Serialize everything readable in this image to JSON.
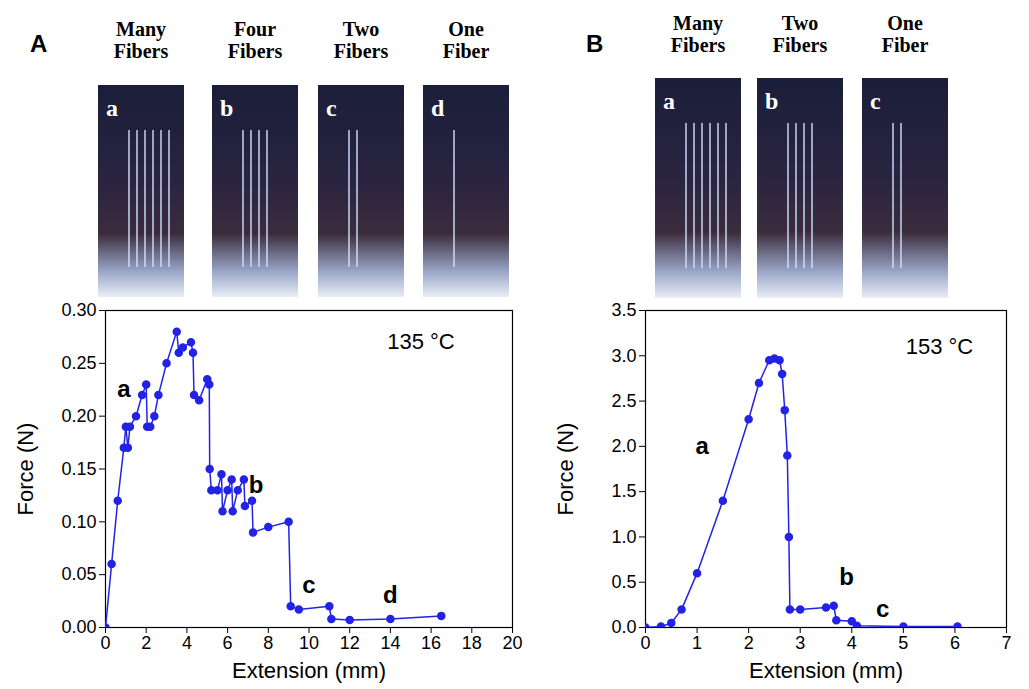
{
  "chart_data": [
    {
      "panel": "A",
      "type": "line",
      "marker": "circle",
      "color": "#2323e6",
      "xlabel": "Extension (mm)",
      "ylabel": "Force (N)",
      "x": [
        0,
        0.3,
        0.6,
        0.9,
        1.0,
        1.1,
        1.2,
        1.5,
        1.8,
        2.0,
        2.05,
        2.2,
        2.4,
        2.6,
        3.0,
        3.5,
        3.6,
        3.8,
        4.2,
        4.3,
        4.35,
        4.6,
        5.0,
        5.1,
        5.12,
        5.2,
        5.5,
        5.7,
        5.75,
        6.0,
        6.2,
        6.25,
        6.5,
        6.8,
        6.85,
        7.2,
        7.25,
        8.0,
        9.0,
        9.1,
        9.5,
        11.0,
        11.1,
        12.0,
        14.0,
        16.5
      ],
      "values": [
        0,
        0.06,
        0.12,
        0.17,
        0.19,
        0.17,
        0.19,
        0.2,
        0.22,
        0.23,
        0.19,
        0.19,
        0.2,
        0.22,
        0.25,
        0.28,
        0.26,
        0.265,
        0.27,
        0.26,
        0.22,
        0.215,
        0.235,
        0.23,
        0.15,
        0.13,
        0.13,
        0.145,
        0.11,
        0.13,
        0.14,
        0.11,
        0.13,
        0.14,
        0.115,
        0.12,
        0.09,
        0.095,
        0.1,
        0.02,
        0.017,
        0.02,
        0.008,
        0.007,
        0.008,
        0.011
      ],
      "xlim": [
        0,
        20
      ],
      "xticks": [
        0,
        2,
        4,
        6,
        8,
        10,
        12,
        14,
        16,
        18,
        20
      ],
      "ylim": [
        0,
        0.3
      ],
      "yticks": [
        {
          "value": 0,
          "label": "0.00"
        },
        {
          "value": 0.05,
          "label": "0.05"
        },
        {
          "value": 0.1,
          "label": "0.10"
        },
        {
          "value": 0.15,
          "label": "0.15"
        },
        {
          "value": 0.2,
          "label": "0.20"
        },
        {
          "value": 0.25,
          "label": "0.25"
        },
        {
          "value": 0.3,
          "label": "0.30"
        }
      ],
      "annotations": [
        {
          "text": "135 °C",
          "x": 15.5,
          "y": 0.27
        },
        {
          "text": "a",
          "x": 0.9,
          "y": 0.225
        },
        {
          "text": "b",
          "x": 7.4,
          "y": 0.135
        },
        {
          "text": "c",
          "x": 10.0,
          "y": 0.04
        },
        {
          "text": "d",
          "x": 14.0,
          "y": 0.03
        }
      ],
      "photos": [
        {
          "title": "Many Fibers",
          "label": "a"
        },
        {
          "title": "Four Fibers",
          "label": "b"
        },
        {
          "title": "Two Fibers",
          "label": "c"
        },
        {
          "title": "One Fiber",
          "label": "d"
        }
      ]
    },
    {
      "panel": "B",
      "type": "line",
      "marker": "circle",
      "color": "#2323e6",
      "xlabel": "Extension (mm)",
      "ylabel": "Force (N)",
      "x": [
        0,
        0.3,
        0.5,
        0.7,
        1.0,
        1.5,
        2.0,
        2.2,
        2.4,
        2.5,
        2.6,
        2.65,
        2.7,
        2.75,
        2.78,
        2.8,
        3.0,
        3.5,
        3.65,
        3.7,
        4.0,
        4.1,
        5.0,
        6.05
      ],
      "values": [
        0,
        0.01,
        0.05,
        0.2,
        0.6,
        1.4,
        2.3,
        2.7,
        2.95,
        2.97,
        2.95,
        2.8,
        2.4,
        1.9,
        1.0,
        0.2,
        0.2,
        0.22,
        0.24,
        0.08,
        0.07,
        0.02,
        0.01,
        0.01
      ],
      "xlim": [
        0,
        7
      ],
      "xticks": [
        0,
        1,
        2,
        3,
        4,
        5,
        6,
        7
      ],
      "ylim": [
        0,
        3.5
      ],
      "yticks": [
        {
          "value": 0,
          "label": "0.0"
        },
        {
          "value": 0.5,
          "label": "0.5"
        },
        {
          "value": 1,
          "label": "1.0"
        },
        {
          "value": 1.5,
          "label": "1.5"
        },
        {
          "value": 2,
          "label": "2.0"
        },
        {
          "value": 2.5,
          "label": "2.5"
        },
        {
          "value": 3,
          "label": "3.0"
        },
        {
          "value": 3.5,
          "label": "3.5"
        }
      ],
      "annotations": [
        {
          "text": "153 °C",
          "x": 5.7,
          "y": 3.1
        },
        {
          "text": "a",
          "x": 1.1,
          "y": 2.0
        },
        {
          "text": "b",
          "x": 3.9,
          "y": 0.55
        },
        {
          "text": "c",
          "x": 4.6,
          "y": 0.2
        }
      ],
      "photos": [
        {
          "title": "Many Fibers",
          "label": "a"
        },
        {
          "title": "Two Fibers",
          "label": "b"
        },
        {
          "title": "One Fiber",
          "label": "c"
        }
      ]
    }
  ]
}
